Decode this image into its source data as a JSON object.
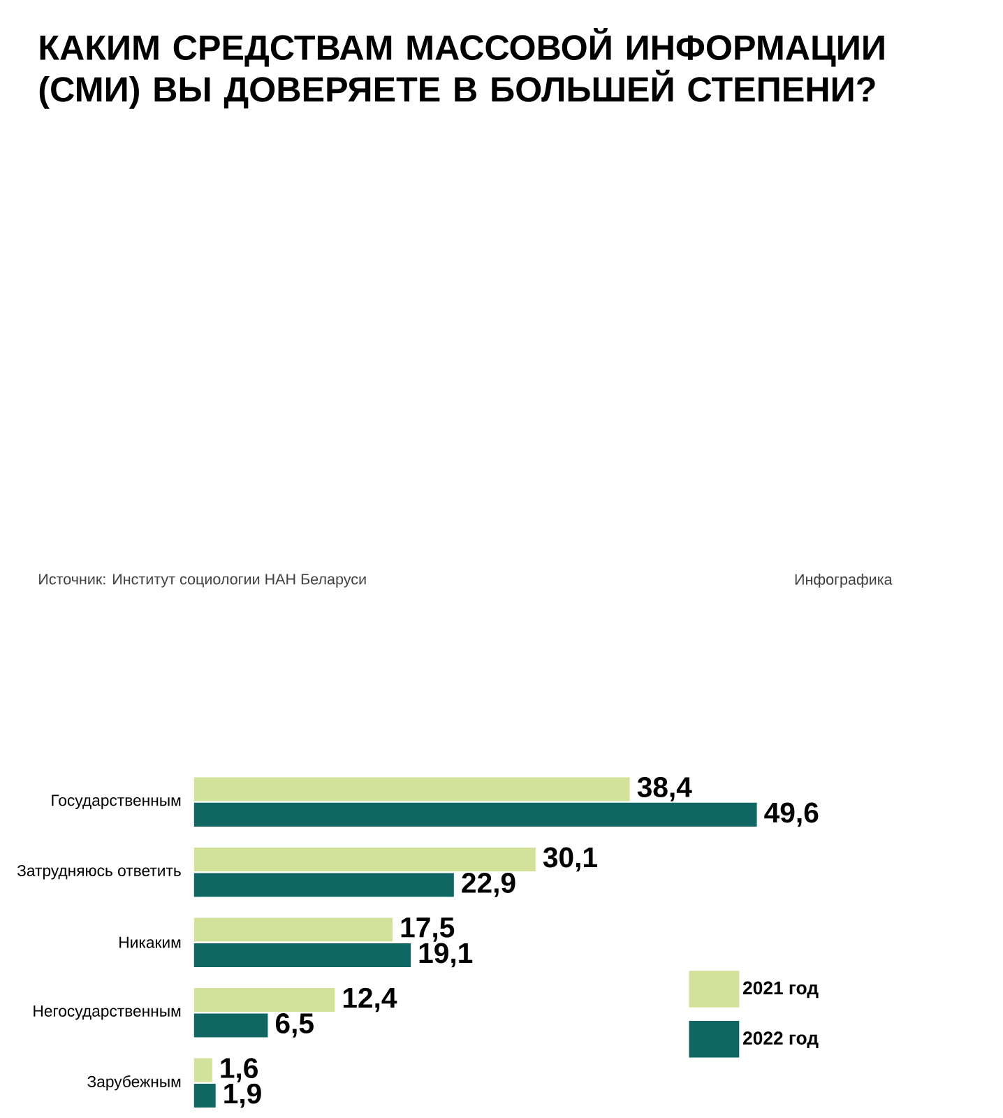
{
  "chart_data": {
    "type": "bar",
    "orientation": "horizontal",
    "title": "КАКИМ СРЕДСТВАМ МАССОВОЙ ИНФОРМАЦИИ (СМИ) ВЫ ДОВЕРЯЕТЕ В БОЛЬШЕЙ СТЕПЕНИ?",
    "categories": [
      "Государственным",
      "Затрудняюсь ответить",
      "Никаким",
      "Негосударственным",
      "Зарубежным"
    ],
    "legend": "right",
    "series": [
      {
        "name": "2021 год",
        "color": "#d3e29a",
        "values": [
          38.4,
          30.1,
          17.5,
          12.4,
          1.6
        ],
        "value_labels": [
          "38,4",
          "30,1",
          "17,5",
          "12,4",
          "1,6"
        ]
      },
      {
        "name": "2022 год",
        "color": "#0f6662",
        "values": [
          49.6,
          22.9,
          19.1,
          6.5,
          1.9
        ],
        "value_labels": [
          "49,6",
          "22,9",
          "19,1",
          "6,5",
          "1,9"
        ]
      }
    ],
    "annotations": [
      "Источник: Институт социологии НАН Беларуси",
      "Инфографика"
    ]
  }
}
